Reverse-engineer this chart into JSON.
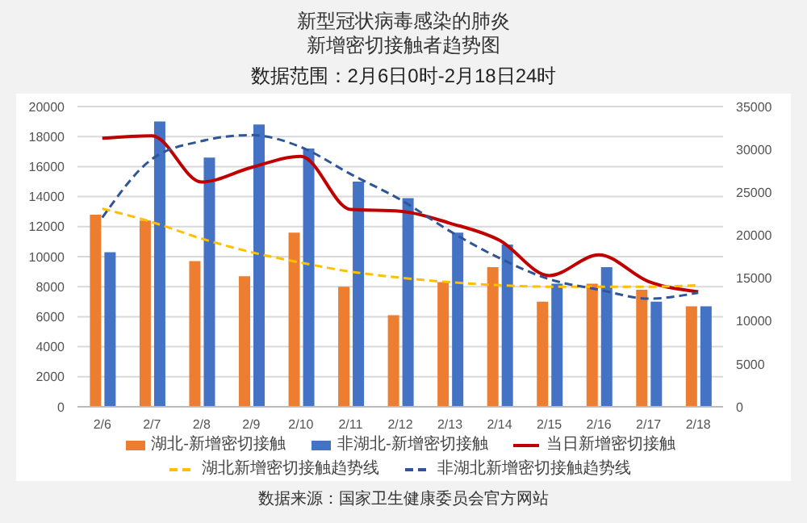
{
  "chart_data": {
    "type": "bar",
    "title": "新型冠状病毒感染的肺炎新增密切接触者趋势图",
    "subtitle": "数据范围：2月6日0时-2月18日24时",
    "categories": [
      "2/6",
      "2/7",
      "2/8",
      "2/9",
      "2/10",
      "2/11",
      "2/12",
      "2/13",
      "2/14",
      "2/15",
      "2/16",
      "2/17",
      "2/18"
    ],
    "series": [
      {
        "name": "湖北-新增密切接触",
        "color": "#ed7d31",
        "values": [
          12800,
          12400,
          9700,
          8700,
          11600,
          8000,
          6100,
          8300,
          9300,
          7000,
          8200,
          7800,
          6700
        ]
      },
      {
        "name": "非湖北-新增密切接触",
        "color": "#4472c4",
        "values": [
          10300,
          19000,
          16600,
          18800,
          17200,
          15000,
          13900,
          11600,
          10800,
          8200,
          9300,
          7000,
          6700
        ]
      },
      {
        "name": "当日新增密切接触",
        "type": "line",
        "axis": "y2",
        "color": "#c00000",
        "line_style": "solid",
        "values": [
          31300,
          31600,
          26200,
          27900,
          29200,
          23000,
          22800,
          21400,
          19400,
          15300,
          17700,
          14600,
          13400
        ]
      },
      {
        "name": "湖北新增密切接触趋势线",
        "type": "line",
        "color": "#ffc000",
        "line_style": "dashed",
        "values": [
          13200,
          12300,
          11200,
          10300,
          9600,
          9000,
          8600,
          8300,
          8100,
          8000,
          8000,
          8000,
          8100
        ]
      },
      {
        "name": "非湖北新增密切接触趋势线",
        "type": "line",
        "color": "#2f5597",
        "line_style": "dashed",
        "values": [
          12600,
          16500,
          17700,
          18100,
          17300,
          15500,
          13800,
          11700,
          9900,
          8500,
          7800,
          7200,
          7600
        ]
      }
    ],
    "ylim": [
      0,
      20000
    ],
    "yticks": [
      0,
      2000,
      4000,
      6000,
      8000,
      10000,
      12000,
      14000,
      16000,
      18000,
      20000
    ],
    "y2lim": [
      0,
      35000
    ],
    "y2ticks": [
      0,
      5000,
      10000,
      15000,
      20000,
      25000,
      30000,
      35000
    ],
    "grid": "y",
    "legend": "bottom",
    "marker": "none",
    "annotations": [
      "数据来源：国家卫生健康委员会官方网站"
    ]
  }
}
